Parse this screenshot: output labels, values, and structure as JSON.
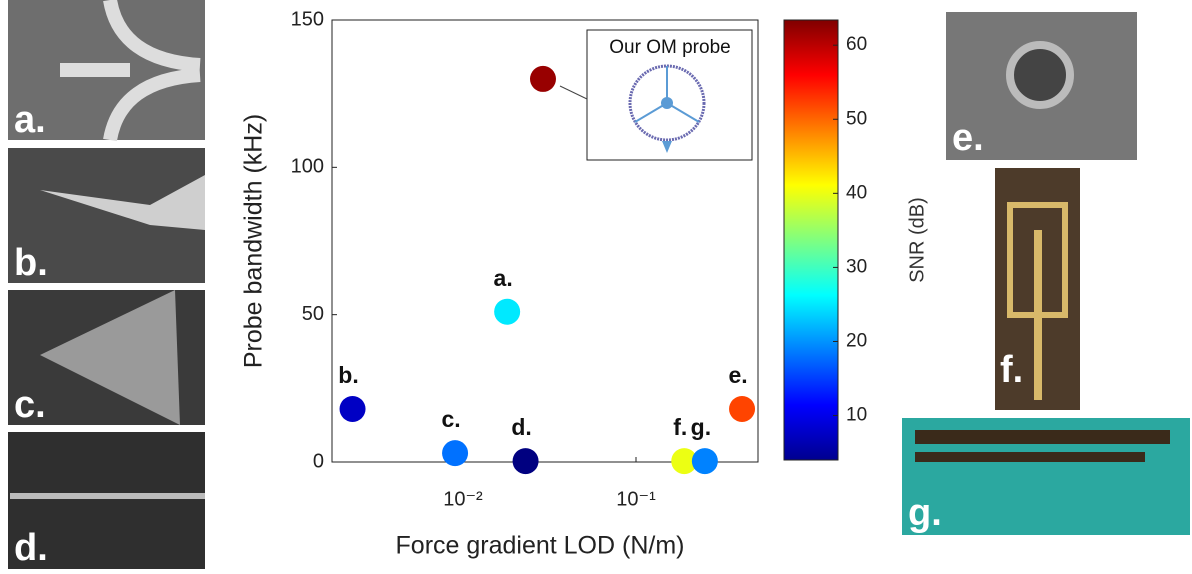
{
  "chart_data": {
    "type": "scatter",
    "xlabel": "Force gradient LOD (N/m)",
    "ylabel": "Probe bandwidth (kHz)",
    "xscale": "log",
    "xlim": [
      0.00175,
      0.507
    ],
    "ylim": [
      0,
      150
    ],
    "xticks": [
      {
        "value": 0.01,
        "label": "10⁻²"
      },
      {
        "value": 0.1,
        "label": "10⁻¹"
      }
    ],
    "yticks": [
      0,
      50,
      100,
      150
    ],
    "annotation": "Our OM probe",
    "series": [
      {
        "x": [
          0.029,
          0.018,
          0.0023,
          0.009,
          0.023,
          0.19,
          0.25,
          0.41
        ],
        "values": [
          130,
          51,
          18,
          3,
          0.3,
          0.3,
          0.3,
          18
        ],
        "snr": [
          62,
          25,
          8,
          18,
          4,
          40,
          19,
          52
        ],
        "labels": [
          null,
          "a.",
          "b.",
          "c.",
          "d.",
          "f.",
          "g.",
          "e."
        ]
      }
    ],
    "colorbar": {
      "label": "SNR (dB)",
      "colormap": "jet",
      "clim": [
        4,
        63.4
      ],
      "ticks": [
        10,
        20,
        30,
        40,
        50,
        60
      ]
    }
  },
  "panels": [
    "a.",
    "b.",
    "c.",
    "d.",
    "e.",
    "f.",
    "g."
  ]
}
